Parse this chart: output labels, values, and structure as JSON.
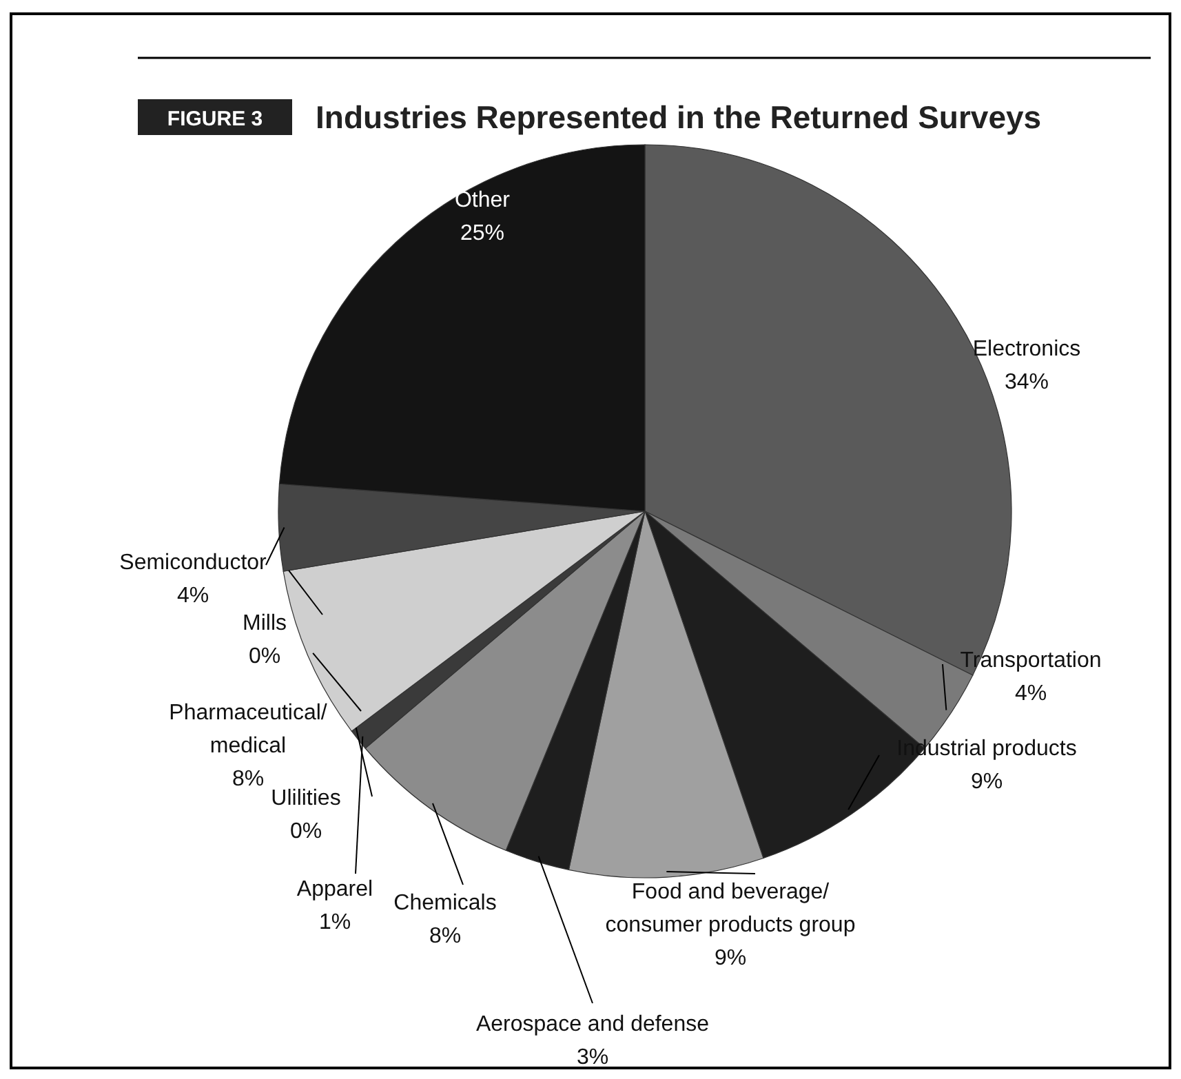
{
  "chart_data": {
    "type": "pie",
    "title": "Industries Represented in the Returned Surveys",
    "annotations": [
      "FIGURE 3"
    ],
    "categories": [
      "Electronics",
      "Transportation",
      "Industrial products",
      "Food and beverage/\nconsumer products group",
      "Aerospace and defense",
      "Chemicals",
      "Apparel",
      "Ulilities",
      "Pharmaceutical/\nmedical",
      "Mills",
      "Semiconductor",
      "Other"
    ],
    "values": [
      34,
      4,
      9,
      9,
      3,
      8,
      1,
      0,
      8,
      0,
      4,
      25
    ],
    "value_labels": [
      "34%",
      "4%",
      "9%",
      "9%",
      "3%",
      "8%",
      "1%",
      "0%",
      "8%",
      "0%",
      "4%",
      "25%"
    ],
    "colors": [
      "#5a5a5a",
      "#7a7a7a",
      "#1e1e1e",
      "#a0a0a0",
      "#1e1e1e",
      "#8c8c8c",
      "#3a3a3a",
      null,
      "#cfcfcf",
      null,
      "#454545",
      "#141414"
    ]
  }
}
